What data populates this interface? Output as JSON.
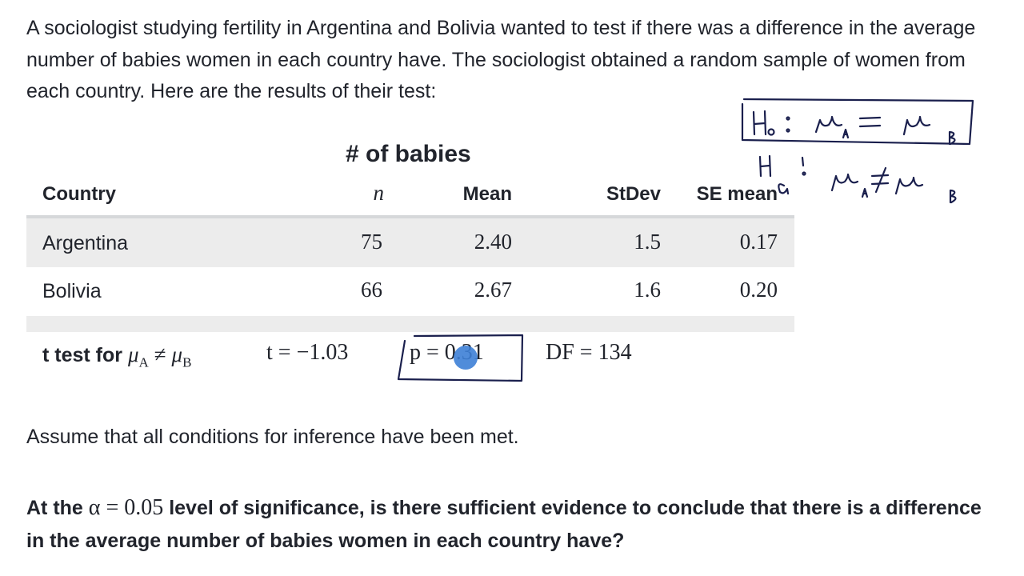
{
  "intro_text": "A sociologist studying fertility in Argentina and Bolivia wanted to test if there was a difference in the average number of babies women in each country have. The sociologist obtained a random sample of women from each country. Here are the results of their test:",
  "table": {
    "group_header": "# of babies",
    "columns": {
      "country": "Country",
      "n": "n",
      "mean": "Mean",
      "stdev": "StDev",
      "se_mean": "SE mean"
    },
    "rows": [
      {
        "country": "Argentina",
        "n": "75",
        "mean": "2.40",
        "stdev": "1.5",
        "se_mean": "0.17"
      },
      {
        "country": "Bolivia",
        "n": "66",
        "mean": "2.67",
        "stdev": "1.6",
        "se_mean": "0.20"
      }
    ]
  },
  "ttest": {
    "label_prefix": "t test for",
    "mu": "μ",
    "sub_a": "A",
    "neq": "≠",
    "sub_b": "B",
    "t_value": "t = −1.03",
    "p_value": "p = 0.31",
    "df": "DF = 134"
  },
  "assume_text": "Assume that all conditions for inference have been met.",
  "question": {
    "part1": "At the",
    "alpha_expr": "α = 0.05",
    "part2": "level of significance, is there sufficient evidence to conclude that there is a difference in the average number of babies women in each country have?"
  },
  "annotations": {
    "null_hypothesis": "H₀ : μA = μB",
    "alt_hypothesis": "Ha : μA ≠ μB",
    "ink_color": "#1a1f4d",
    "cursor_color": "#3d7fd6"
  }
}
